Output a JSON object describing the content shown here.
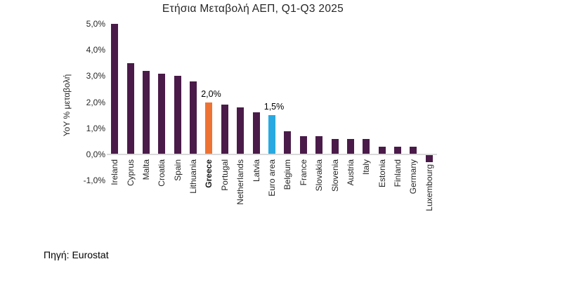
{
  "source_note": "Πηγή: Eurostat",
  "colors": {
    "bar_default": "#4a1b49",
    "bar_greece": "#ed7334",
    "bar_euro_area": "#29a9e1",
    "axis_line": "#d9d9d9",
    "text": "#262626"
  },
  "chart_data": {
    "type": "bar",
    "title": "Ετήσια Μεταβολή ΑΕΠ, Q1-Q3 2025",
    "xlabel": "",
    "ylabel": "YoY % μεταβολή",
    "ylim": [
      -1.0,
      5.0
    ],
    "yticks": [
      5,
      4,
      3,
      2,
      1,
      0,
      -1
    ],
    "ytick_labels": [
      "5,0%",
      "4,0%",
      "3,0%",
      "2,0%",
      "1,0%",
      "0,0%",
      "-1,0%"
    ],
    "grid": false,
    "legend": "none",
    "categories": [
      "Ireland",
      "Cyprus",
      "Malta",
      "Croatia",
      "Spain",
      "Lithuania",
      "Greece",
      "Portugal",
      "Netherlands",
      "Latvia",
      "Euro area",
      "Belgium",
      "France",
      "Slovakia",
      "Slovenia",
      "Austria",
      "Italy",
      "Estonia",
      "Finland",
      "Germany",
      "Luxembourg"
    ],
    "values": [
      5.0,
      3.5,
      3.2,
      3.1,
      3.0,
      2.8,
      2.0,
      1.9,
      1.8,
      1.6,
      1.5,
      0.9,
      0.7,
      0.7,
      0.6,
      0.6,
      0.6,
      0.3,
      0.3,
      0.3,
      -0.3
    ],
    "default_bar_color": "#4a1b49",
    "highlights": [
      {
        "category": "Greece",
        "color": "#ed7334",
        "data_label": "2,0%",
        "bold_category_label": true
      },
      {
        "category": "Euro area",
        "color": "#29a9e1",
        "data_label": "1,5%",
        "bold_category_label": false
      }
    ]
  }
}
